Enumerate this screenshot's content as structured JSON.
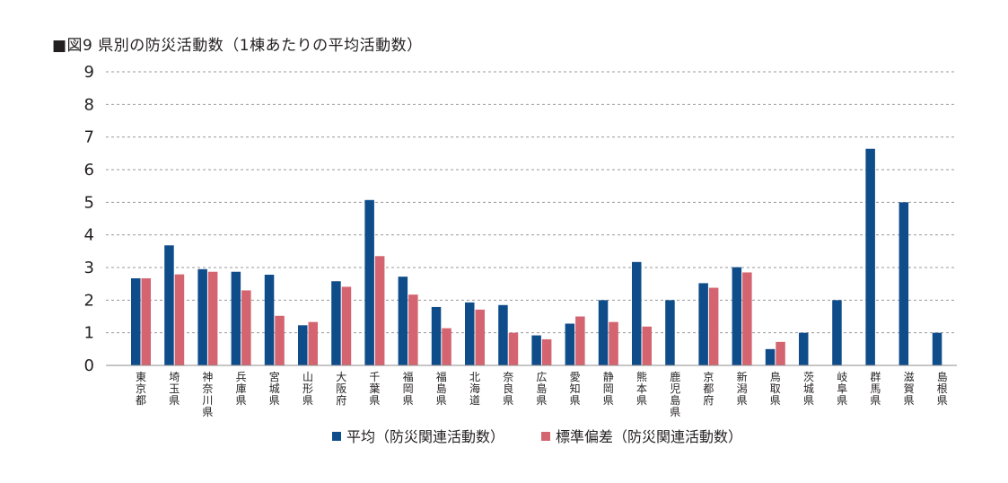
{
  "chart_data": {
    "type": "bar",
    "title": "■図9 県別の防災活動数（1棟あたりの平均活動数）",
    "xlabel": "",
    "ylabel": "",
    "ylim": [
      0,
      9
    ],
    "yticks": [
      0,
      1,
      2,
      3,
      4,
      5,
      6,
      7,
      8,
      9
    ],
    "grid": true,
    "legend_position": "bottom-center",
    "categories": [
      "東京都",
      "埼玉県",
      "神奈川県",
      "兵庫県",
      "宮城県",
      "山形県",
      "大阪府",
      "千葉県",
      "福岡県",
      "福島県",
      "北海道",
      "奈良県",
      "広島県",
      "愛知県",
      "静岡県",
      "熊本県",
      "鹿児島県",
      "京都府",
      "新潟県",
      "鳥取県",
      "茨城県",
      "岐阜県",
      "群馬県",
      "滋賀県",
      "島根県"
    ],
    "series": [
      {
        "name": "平均（防災関連活動数）",
        "color": "#0f4c8a",
        "values": [
          2.67,
          3.68,
          2.95,
          2.87,
          2.78,
          1.23,
          2.58,
          5.07,
          2.72,
          1.79,
          1.93,
          1.85,
          0.92,
          1.28,
          2.0,
          3.17,
          2.0,
          2.52,
          3.01,
          0.5,
          1.0,
          2.0,
          6.64,
          5.0,
          1.0
        ]
      },
      {
        "name": "標準偏差（防災関連活動数）",
        "color": "#d4646f",
        "values": [
          2.67,
          2.79,
          2.87,
          2.3,
          1.52,
          1.33,
          2.41,
          3.35,
          2.17,
          1.14,
          1.71,
          1.0,
          0.8,
          1.5,
          1.33,
          1.19,
          null,
          2.38,
          2.85,
          0.72,
          null,
          null,
          null,
          null,
          null
        ]
      }
    ]
  }
}
